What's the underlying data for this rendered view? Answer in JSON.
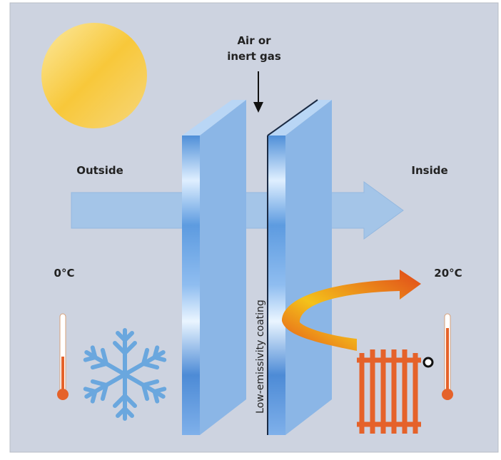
{
  "air_gap_label": {
    "line1": "Air or",
    "line2": "inert gas"
  },
  "outside_label": "Outside",
  "inside_label": "Inside",
  "outside_temp": "0°C",
  "inside_temp": "20°C",
  "coating_label": "Low-emissivity coating"
}
